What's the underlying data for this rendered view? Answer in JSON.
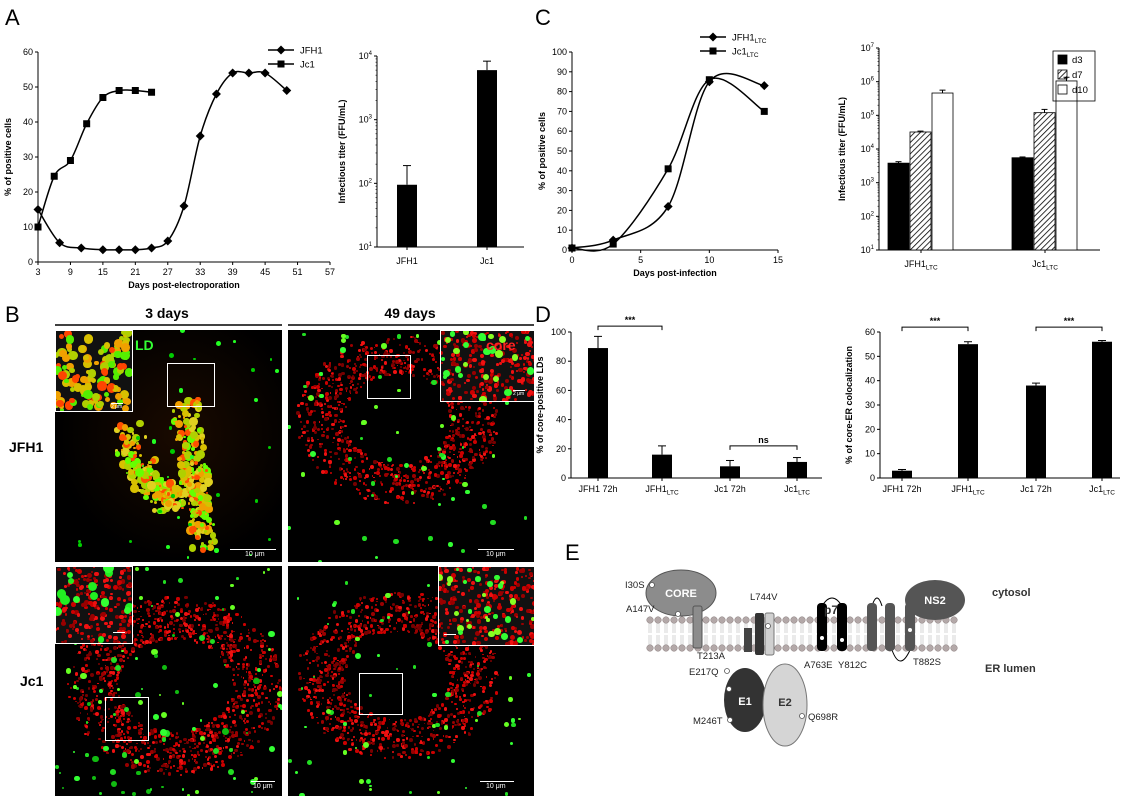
{
  "panels": {
    "A": "A",
    "B": "B",
    "C": "C",
    "D": "D",
    "E": "E"
  },
  "chart_data": [
    {
      "id": "A-left",
      "type": "line",
      "xlabel": "Days post-electroporation",
      "ylabel": "% of positive cells",
      "xlim": [
        3,
        57
      ],
      "ylim": [
        0,
        60
      ],
      "xticks": [
        3,
        9,
        15,
        21,
        27,
        33,
        39,
        45,
        51,
        57
      ],
      "yticks": [
        0,
        10,
        20,
        30,
        40,
        50,
        60
      ],
      "legend": "top-right",
      "series": [
        {
          "name": "JFH1",
          "marker": "diamond",
          "x": [
            3,
            7,
            11,
            15,
            18,
            21,
            24,
            27,
            30,
            33,
            36,
            39,
            42,
            45,
            49
          ],
          "y": [
            15,
            5.5,
            4,
            3.5,
            3.5,
            3.5,
            4,
            6,
            16,
            36,
            48,
            54,
            54,
            54,
            49
          ]
        },
        {
          "name": "Jc1",
          "marker": "square",
          "x": [
            3,
            6,
            9,
            12,
            15,
            18,
            21,
            24
          ],
          "y": [
            10,
            24.5,
            29,
            39.5,
            47,
            49,
            49,
            48.5
          ]
        }
      ]
    },
    {
      "id": "A-right",
      "type": "bar",
      "yscale": "log",
      "ylabel": "Infectious titer (FFU/mL)",
      "ylim": [
        10,
        10000
      ],
      "yticks": [
        {
          "v": 10,
          "e": "1"
        },
        {
          "v": 100,
          "e": "2"
        },
        {
          "v": 1000,
          "e": "3"
        },
        {
          "v": 10000,
          "e": "4"
        }
      ],
      "categories": [
        "JFH1",
        "Jc1"
      ],
      "values": [
        95,
        6000
      ],
      "errors": [
        95,
        2300
      ]
    },
    {
      "id": "C-left",
      "type": "line",
      "xlabel": "Days post-infection",
      "ylabel": "% of positive cells",
      "xlim": [
        0,
        15
      ],
      "ylim": [
        0,
        100
      ],
      "xticks": [
        0,
        5,
        10,
        15
      ],
      "yticks": [
        0,
        10,
        20,
        30,
        40,
        50,
        60,
        70,
        80,
        90,
        100
      ],
      "legend": "top-right",
      "series": [
        {
          "name": "JFH1",
          "sub": "LTC",
          "marker": "diamond",
          "x": [
            0,
            3,
            7,
            10,
            14
          ],
          "y": [
            1,
            5,
            22,
            85,
            83
          ]
        },
        {
          "name": "Jc1",
          "sub": "LTC",
          "marker": "square",
          "x": [
            0,
            3,
            7,
            10,
            14
          ],
          "y": [
            1,
            3,
            41,
            86,
            70
          ]
        }
      ]
    },
    {
      "id": "C-right",
      "type": "bar",
      "yscale": "log",
      "ylabel": "Infectious titer (FFU/mL)",
      "ylim": [
        10,
        10000000
      ],
      "yticks": [
        {
          "v": 10,
          "e": "1"
        },
        {
          "v": 100,
          "e": "2"
        },
        {
          "v": 1000,
          "e": "3"
        },
        {
          "v": 10000,
          "e": "4"
        },
        {
          "v": 100000,
          "e": "5"
        },
        {
          "v": 1000000,
          "e": "6"
        },
        {
          "v": 10000000,
          "e": "7"
        }
      ],
      "categories": [
        {
          "name": "JFH1",
          "sub": "LTC"
        },
        {
          "name": "Jc1",
          "sub": "LTC"
        }
      ],
      "legend": "top-right",
      "series": [
        {
          "name": "d3",
          "fill": "#000000",
          "values": [
            3800,
            5500
          ],
          "errors": [
            400,
            300
          ]
        },
        {
          "name": "d7",
          "fill": "hatch",
          "values": [
            32000,
            120000
          ],
          "errors": [
            2000,
            30000
          ]
        },
        {
          "name": "d10",
          "fill": "#ffffff",
          "values": [
            460000,
            1050000
          ],
          "errors": [
            100000,
            300000
          ]
        }
      ]
    },
    {
      "id": "D-left",
      "type": "bar",
      "ylabel": "% of core-positive LDs",
      "ylim": [
        0,
        100
      ],
      "yticks": [
        0,
        20,
        40,
        60,
        80,
        100
      ],
      "categories": [
        {
          "name": "JFH1 72h",
          "sub": ""
        },
        {
          "name": "JFH1",
          "sub": "LTC"
        },
        {
          "name": "Jc1 72h",
          "sub": ""
        },
        {
          "name": "Jc1",
          "sub": "LTC"
        }
      ],
      "values": [
        89,
        16,
        8,
        11
      ],
      "errors": [
        8,
        6,
        4,
        3
      ],
      "annotations": [
        {
          "from": 0,
          "to": 1,
          "y": 104,
          "text": "***"
        },
        {
          "from": 2,
          "to": 3,
          "y": 22,
          "text": "ns"
        }
      ]
    },
    {
      "id": "D-right",
      "type": "bar",
      "ylabel": "% of core-ER colocalization",
      "ylim": [
        0,
        60
      ],
      "yticks": [
        0,
        10,
        20,
        30,
        40,
        50,
        60
      ],
      "categories": [
        {
          "name": "JFH1 72h",
          "sub": ""
        },
        {
          "name": "JFH1",
          "sub": "LTC"
        },
        {
          "name": "Jc1 72h",
          "sub": ""
        },
        {
          "name": "Jc1",
          "sub": "LTC"
        }
      ],
      "values": [
        3,
        55,
        38,
        56
      ],
      "errors": [
        0.5,
        1,
        1,
        0.5
      ],
      "annotations": [
        {
          "from": 0,
          "to": 1,
          "y": 62,
          "text": "***"
        },
        {
          "from": 2,
          "to": 3,
          "y": 62,
          "text": "***"
        }
      ]
    }
  ],
  "panelB": {
    "col1": "3 days",
    "col2": "49 days",
    "row1": "JFH1",
    "row2": "Jc1",
    "ld": "LD",
    "core": "core",
    "scale10": "10 μm",
    "scale2": "2 μm"
  },
  "panelE": {
    "proteins": [
      "CORE",
      "E1",
      "E2",
      "p7",
      "NS2"
    ],
    "mutations": [
      "I30S",
      "A147V",
      "T213A",
      "E217Q",
      "M246T",
      "L744V",
      "Q698R",
      "A763E",
      "Y812C",
      "T882S"
    ],
    "cytosol": "cytosol",
    "lumen": "ER lumen"
  }
}
